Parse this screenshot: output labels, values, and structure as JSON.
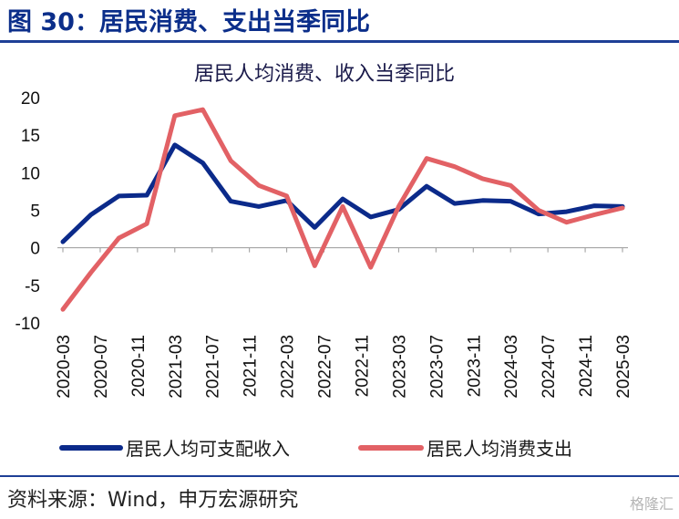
{
  "figure": {
    "title": "图 30：居民消费、支出当季同比",
    "source": "资料来源：Wind，申万宏源研究",
    "watermark": "格隆汇"
  },
  "chart_data": {
    "type": "line",
    "title": "居民人均消费、收入当季同比",
    "xlabel": "",
    "ylabel": "",
    "x": [
      "2020-03",
      "2020-06",
      "2020-09",
      "2020-12",
      "2021-03",
      "2021-06",
      "2021-09",
      "2021-12",
      "2022-03",
      "2022-06",
      "2022-09",
      "2022-12",
      "2023-03",
      "2023-06",
      "2023-09",
      "2023-12",
      "2024-03",
      "2024-06",
      "2024-09",
      "2024-12",
      "2025-03"
    ],
    "x_tick_labels": [
      "2020-03",
      "2020-07",
      "2020-11",
      "2021-03",
      "2021-07",
      "2021-11",
      "2022-03",
      "2022-07",
      "2022-11",
      "2023-03",
      "2023-07",
      "2023-11",
      "2024-03",
      "2024-07",
      "2024-11",
      "2025-03"
    ],
    "ylim": [
      -10,
      20
    ],
    "y_ticks": [
      20,
      15,
      10,
      5,
      0,
      -5,
      -10
    ],
    "grid": false,
    "legend_position": "bottom",
    "series": [
      {
        "name": "居民人均可支配收入",
        "color": "#0b2a8a",
        "values": [
          0.8,
          4.4,
          6.9,
          7.0,
          13.7,
          11.3,
          6.2,
          5.5,
          6.3,
          2.7,
          6.5,
          4.1,
          5.1,
          8.2,
          5.9,
          6.3,
          6.2,
          4.5,
          4.8,
          5.6,
          5.5
        ]
      },
      {
        "name": "居民人均消费支出",
        "color": "#e26165",
        "values": [
          -8.2,
          -3.3,
          1.3,
          3.2,
          17.6,
          18.4,
          11.6,
          8.3,
          6.9,
          -2.4,
          5.5,
          -2.6,
          5.5,
          11.9,
          10.8,
          9.2,
          8.3,
          5.0,
          3.4,
          4.4,
          5.3
        ]
      }
    ]
  }
}
